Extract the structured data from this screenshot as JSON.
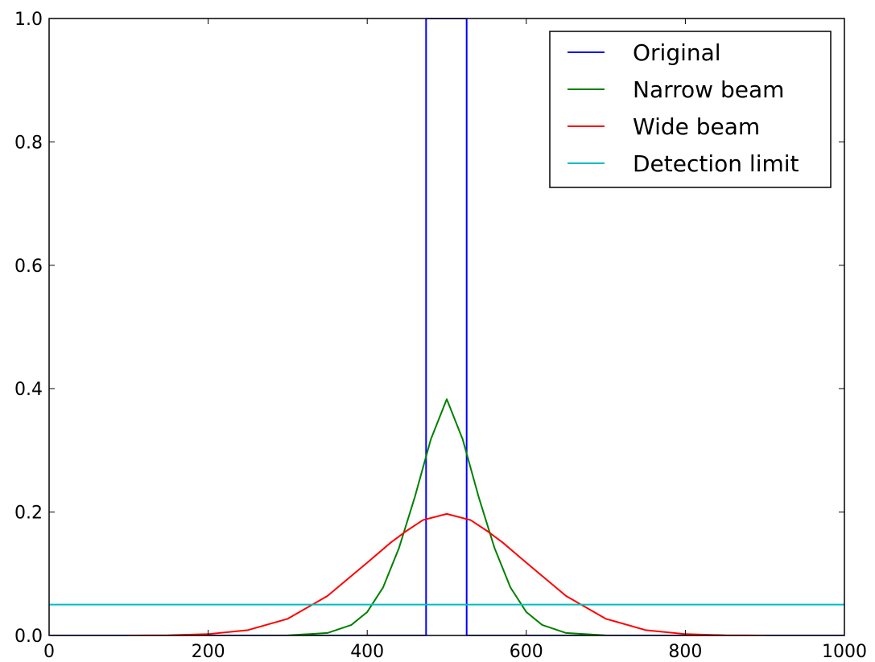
{
  "chart_data": {
    "type": "line",
    "title": "",
    "xlabel": "",
    "ylabel": "",
    "xlim": [
      0,
      1000
    ],
    "ylim": [
      0,
      1.0
    ],
    "xticks": [
      0,
      200,
      400,
      600,
      800,
      1000
    ],
    "xtick_labels": [
      "0",
      "200",
      "400",
      "600",
      "800",
      "1000"
    ],
    "yticks": [
      0.0,
      0.2,
      0.4,
      0.6,
      0.8,
      1.0
    ],
    "ytick_labels": [
      "0.0",
      "0.2",
      "0.4",
      "0.6",
      "0.8",
      "1.0"
    ],
    "grid": false,
    "legend_position": "top-right",
    "series": [
      {
        "name": "Original",
        "color": "#0000ff",
        "x": [
          0,
          474,
          474,
          525,
          525,
          1000
        ],
        "y": [
          0,
          0,
          1.0,
          1.0,
          0,
          0
        ]
      },
      {
        "name": "Narrow beam",
        "color": "#008000",
        "x": [
          300,
          350,
          380,
          400,
          420,
          440,
          460,
          480,
          500,
          520,
          540,
          560,
          580,
          600,
          620,
          650,
          700
        ],
        "y": [
          0.0002,
          0.004,
          0.017,
          0.038,
          0.078,
          0.142,
          0.225,
          0.318,
          0.383,
          0.318,
          0.225,
          0.142,
          0.078,
          0.038,
          0.017,
          0.004,
          0.0002
        ]
      },
      {
        "name": "Wide beam",
        "color": "#ff0000",
        "x": [
          100,
          150,
          200,
          250,
          300,
          350,
          400,
          430,
          450,
          470,
          500,
          530,
          550,
          570,
          600,
          650,
          700,
          750,
          800,
          850,
          900
        ],
        "y": [
          0.0,
          0.0003,
          0.0022,
          0.0087,
          0.027,
          0.064,
          0.118,
          0.151,
          0.17,
          0.187,
          0.197,
          0.187,
          0.17,
          0.151,
          0.118,
          0.064,
          0.027,
          0.0087,
          0.0022,
          0.0003,
          0.0
        ]
      },
      {
        "name": "Detection limit",
        "color": "#00bfbf",
        "x": [
          0,
          1000
        ],
        "y": [
          0.05,
          0.05
        ]
      }
    ]
  }
}
